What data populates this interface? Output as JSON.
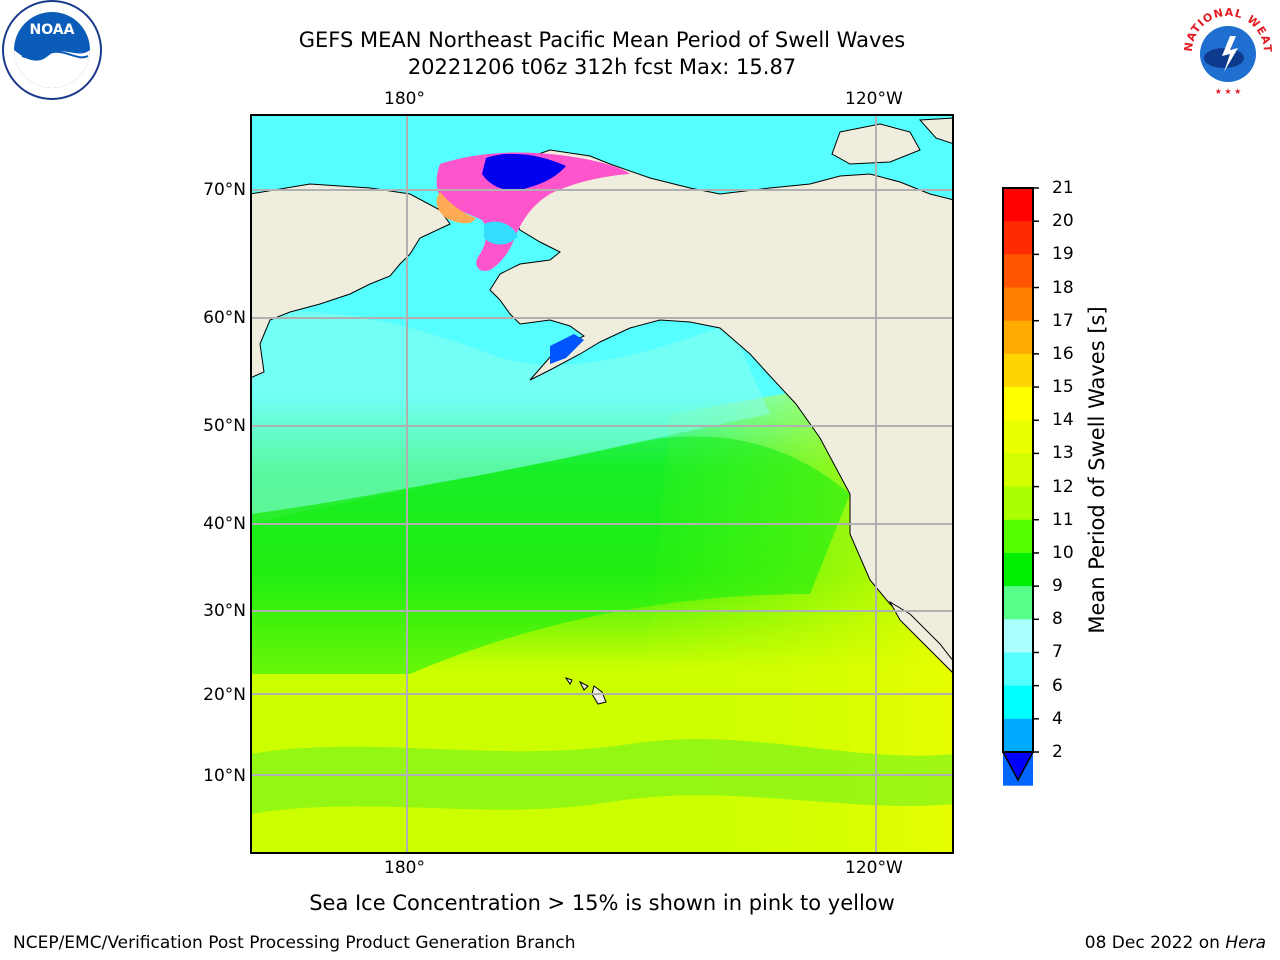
{
  "title_line1": "GEFS MEAN Northeast Pacific Mean Period of Swell Waves",
  "title_line2": "20221206 t06z 312h fcst   Max: 15.87",
  "axes": {
    "lon_labels": [
      "180°",
      "120°W"
    ],
    "lat_labels": [
      "70°N",
      "60°N",
      "50°N",
      "40°N",
      "30°N",
      "20°N",
      "10°N"
    ]
  },
  "colorbar": {
    "title": "Mean Period of Swell Waves [s]",
    "ticks": [
      "21",
      "20",
      "19",
      "18",
      "17",
      "16",
      "15",
      "14",
      "13",
      "12",
      "11",
      "10",
      "9",
      "8",
      "7",
      "6",
      "4",
      "2"
    ],
    "colors": [
      "#ff0000",
      "#ff2a00",
      "#ff5500",
      "#ff8000",
      "#ffaa00",
      "#ffd400",
      "#ffff00",
      "#eaff00",
      "#d4ff00",
      "#aaff00",
      "#55ff00",
      "#00ee00",
      "#55ff88",
      "#aaffff",
      "#55ffff",
      "#00ffff",
      "#00aaff",
      "#0066ff",
      "#0000ff"
    ],
    "extend": "min"
  },
  "ice_note": "Sea Ice Concentration > 15% is shown in pink to yellow",
  "footer": {
    "left": "NCEP/EMC/Verification Post Processing Product Generation Branch",
    "right_date": "08 Dec 2022 on ",
    "right_host": "Hera"
  },
  "logos": {
    "noaa_text": "NOAA",
    "nws_text": "NATIONAL WEATHER SERVICE"
  },
  "map_colors": {
    "land": "#efedde",
    "coast": "#000000",
    "grid": "#b0b0b0",
    "ice_pink": "#ff55cc",
    "ice_orange": "#ffaa55",
    "deep_blue": "#0000ee"
  }
}
